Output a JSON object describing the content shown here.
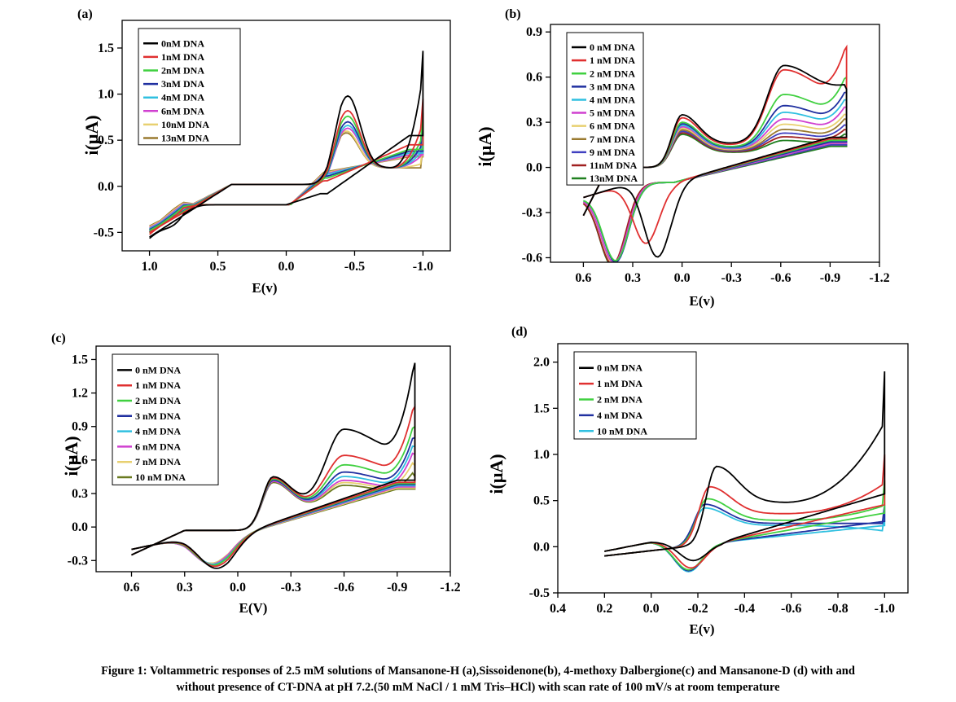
{
  "caption": {
    "line1": "Figure 1: Voltammetric responses of 2.5 mM solutions of Mansanone-H (a),Sissoidenone(b), 4-methoxy Dalbergione(c) and Mansanone-D (d) with and",
    "line2": "without presence of CT-DNA at pH 7.2.(50 mM NaCl / 1 mM Tris–HCl) with scan rate of 100 mV/s at room temperature"
  },
  "chart_data": [
    {
      "type": "line",
      "panel_label": "(a)",
      "xlabel": "E(v)",
      "ylabel": "i(μA)",
      "xlim": [
        1.2,
        -1.2
      ],
      "ylim": [
        -0.7,
        1.8
      ],
      "xticks": [
        1.0,
        0.5,
        0.0,
        -0.5,
        -1.0
      ],
      "xtick_labels": [
        "1.0",
        "0.5",
        "0.0",
        "-0.5",
        "-1.0"
      ],
      "yticks": [
        -0.5,
        0.0,
        0.5,
        1.0,
        1.5
      ],
      "ytick_labels": [
        "-0.5",
        "0.0",
        "0.5",
        "1.0",
        "1.5"
      ],
      "legend_position": "top-left",
      "scan": {
        "start": 1.0,
        "end": -1.0
      },
      "series": [
        {
          "name": "0nM DNA",
          "color": "#000000",
          "pa_pos": -0.45,
          "pa_h": 0.88,
          "pc_pos": -0.25,
          "pc_h": -0.08,
          "end_fwd": 1.47,
          "end_rev": 0.55,
          "start_val": -0.55,
          "start_dip": -0.32
        },
        {
          "name": "1nM DNA",
          "color": "#e03030",
          "pa_pos": -0.45,
          "pa_h": 0.72,
          "pc_pos": -0.27,
          "pc_h": 0.06,
          "end_fwd": 0.95,
          "end_rev": 0.45,
          "start_val": -0.5,
          "start_dip": -0.24
        },
        {
          "name": "2nM DNA",
          "color": "#40d040",
          "pa_pos": -0.45,
          "pa_h": 0.66,
          "pc_pos": -0.28,
          "pc_h": 0.09,
          "end_fwd": 0.8,
          "end_rev": 0.4,
          "start_val": -0.48,
          "start_dip": -0.22
        },
        {
          "name": "3nM DNA",
          "color": "#2030a0",
          "pa_pos": -0.45,
          "pa_h": 0.6,
          "pc_pos": -0.28,
          "pc_h": 0.11,
          "end_fwd": 0.72,
          "end_rev": 0.38,
          "start_val": -0.47,
          "start_dip": -0.21
        },
        {
          "name": "4nM DNA",
          "color": "#30c0e0",
          "pa_pos": -0.45,
          "pa_h": 0.56,
          "pc_pos": -0.28,
          "pc_h": 0.13,
          "end_fwd": 0.65,
          "end_rev": 0.36,
          "start_val": -0.46,
          "start_dip": -0.2
        },
        {
          "name": "6nM DNA",
          "color": "#d040d0",
          "pa_pos": -0.45,
          "pa_h": 0.53,
          "pc_pos": -0.28,
          "pc_h": 0.14,
          "end_fwd": 0.6,
          "end_rev": 0.34,
          "start_val": -0.45,
          "start_dip": -0.19
        },
        {
          "name": "10nM DNA",
          "color": "#e8d070",
          "pa_pos": -0.44,
          "pa_h": 0.5,
          "pc_pos": -0.28,
          "pc_h": 0.15,
          "end_fwd": 0.5,
          "end_rev": 0.33,
          "start_val": -0.44,
          "start_dip": -0.18
        },
        {
          "name": "13nM DNA",
          "color": "#9a7a30",
          "pa_pos": -0.44,
          "pa_h": 0.48,
          "pc_pos": -0.28,
          "pc_h": 0.16,
          "end_fwd": 0.45,
          "end_rev": 0.32,
          "start_val": -0.43,
          "start_dip": -0.17
        }
      ]
    },
    {
      "type": "line",
      "panel_label": "(b)",
      "xlabel": "E(v)",
      "ylabel": "i(μA)",
      "xlim": [
        0.8,
        -1.2
      ],
      "ylim": [
        -0.63,
        0.95
      ],
      "xticks": [
        0.6,
        0.3,
        0.0,
        -0.3,
        -0.6,
        -0.9,
        -1.2
      ],
      "xtick_labels": [
        "0.6",
        "0.3",
        "0.0",
        "-0.3",
        "-0.6",
        "-0.9",
        "-1.2"
      ],
      "yticks": [
        -0.6,
        -0.3,
        0.0,
        0.3,
        0.6,
        0.9
      ],
      "ytick_labels": [
        "-0.6",
        "-0.3",
        "0.0",
        "0.3",
        "0.6",
        "0.9"
      ],
      "legend_position": "top-left",
      "scan": {
        "start": 0.6,
        "end": -1.0
      },
      "series": [
        {
          "name": "0 nM DNA",
          "color": "#000000",
          "a1_pos": 0.0,
          "a1_h": 0.4,
          "a2_pos": -0.62,
          "a2_h": 0.62,
          "c1_pos": 0.15,
          "c1_h": -0.55,
          "end_fwd": 0.52,
          "end_rev": 0.2
        },
        {
          "name": "1 nM DNA",
          "color": "#e03030",
          "a1_pos": 0.0,
          "a1_h": 0.38,
          "a2_pos": -0.62,
          "a2_h": 0.6,
          "c1_pos": 0.22,
          "c1_h": -0.45,
          "end_fwd": 0.8,
          "end_rev": 0.19
        },
        {
          "name": "2 nM DNA",
          "color": "#40d040",
          "a1_pos": 0.0,
          "a1_h": 0.35,
          "a2_pos": -0.62,
          "a2_h": 0.45,
          "c1_pos": 0.4,
          "c1_h": -0.54,
          "end_fwd": 0.6,
          "end_rev": 0.18
        },
        {
          "name": "3 nM DNA",
          "color": "#2030a0",
          "a1_pos": 0.0,
          "a1_h": 0.34,
          "a2_pos": -0.62,
          "a2_h": 0.38,
          "c1_pos": 0.4,
          "c1_h": -0.55,
          "end_fwd": 0.5,
          "end_rev": 0.17
        },
        {
          "name": "4 nM DNA",
          "color": "#30c0e0",
          "a1_pos": 0.0,
          "a1_h": 0.33,
          "a2_pos": -0.62,
          "a2_h": 0.34,
          "c1_pos": 0.4,
          "c1_h": -0.55,
          "end_fwd": 0.45,
          "end_rev": 0.17
        },
        {
          "name": "5 nM DNA",
          "color": "#d040d0",
          "a1_pos": 0.0,
          "a1_h": 0.32,
          "a2_pos": -0.62,
          "a2_h": 0.3,
          "c1_pos": 0.41,
          "c1_h": -0.55,
          "end_fwd": 0.4,
          "end_rev": 0.16
        },
        {
          "name": "6 nM DNA",
          "color": "#e8d070",
          "a1_pos": 0.0,
          "a1_h": 0.31,
          "a2_pos": -0.62,
          "a2_h": 0.27,
          "c1_pos": 0.41,
          "c1_h": -0.56,
          "end_fwd": 0.35,
          "end_rev": 0.16
        },
        {
          "name": "7 nM DNA",
          "color": "#9a7a30",
          "a1_pos": 0.0,
          "a1_h": 0.3,
          "a2_pos": -0.62,
          "a2_h": 0.24,
          "c1_pos": 0.41,
          "c1_h": -0.56,
          "end_fwd": 0.32,
          "end_rev": 0.16
        },
        {
          "name": "9 nM DNA",
          "color": "#4040c0",
          "a1_pos": 0.0,
          "a1_h": 0.29,
          "a2_pos": -0.62,
          "a2_h": 0.22,
          "c1_pos": 0.41,
          "c1_h": -0.56,
          "end_fwd": 0.28,
          "end_rev": 0.15
        },
        {
          "name": "11nM DNA",
          "color": "#a02020",
          "a1_pos": 0.0,
          "a1_h": 0.28,
          "a2_pos": -0.62,
          "a2_h": 0.2,
          "c1_pos": 0.42,
          "c1_h": -0.56,
          "end_fwd": 0.25,
          "end_rev": 0.15
        },
        {
          "name": "13nM DNA",
          "color": "#208020",
          "a1_pos": 0.0,
          "a1_h": 0.27,
          "a2_pos": -0.62,
          "a2_h": 0.18,
          "c1_pos": 0.42,
          "c1_h": -0.57,
          "end_fwd": 0.22,
          "end_rev": 0.14
        }
      ]
    },
    {
      "type": "line",
      "panel_label": "(c)",
      "xlabel": "E(V)",
      "ylabel": "i(μA)",
      "xlim": [
        0.8,
        -1.2
      ],
      "ylim": [
        -0.4,
        1.62
      ],
      "xticks": [
        0.6,
        0.3,
        0.0,
        -0.3,
        -0.6,
        -0.9,
        -1.2
      ],
      "xtick_labels": [
        "0.6",
        "0.3",
        "0.0",
        "-0.3",
        "-0.6",
        "-0.9",
        "-1.2"
      ],
      "yticks": [
        -0.3,
        0.0,
        0.3,
        0.6,
        0.9,
        1.2,
        1.5
      ],
      "ytick_labels": [
        "-0.3",
        "0.0",
        "0.3",
        "0.6",
        "0.9",
        "1.2",
        "1.5"
      ],
      "legend_position": "top-left",
      "scan": {
        "start": 0.6,
        "end": -1.0
      },
      "series": [
        {
          "name": "0 nM DNA",
          "color": "#000000",
          "a1_pos": -0.2,
          "a1_h": 0.53,
          "a2_pos": -0.6,
          "a2_h": 0.79,
          "c1_pos": 0.12,
          "c1_h": -0.3,
          "end_fwd": 1.47,
          "end_rev": 0.42
        },
        {
          "name": "1 nM DNA",
          "color": "#e03030",
          "a1_pos": -0.2,
          "a1_h": 0.52,
          "a2_pos": -0.6,
          "a2_h": 0.56,
          "c1_pos": 0.13,
          "c1_h": -0.28,
          "end_fwd": 1.08,
          "end_rev": 0.4
        },
        {
          "name": "2 nM DNA",
          "color": "#40d040",
          "a1_pos": -0.2,
          "a1_h": 0.51,
          "a2_pos": -0.6,
          "a2_h": 0.48,
          "c1_pos": 0.14,
          "c1_h": -0.27,
          "end_fwd": 0.9,
          "end_rev": 0.39
        },
        {
          "name": "3 nM DNA",
          "color": "#2030a0",
          "a1_pos": -0.2,
          "a1_h": 0.5,
          "a2_pos": -0.6,
          "a2_h": 0.42,
          "c1_pos": 0.14,
          "c1_h": -0.27,
          "end_fwd": 0.8,
          "end_rev": 0.38
        },
        {
          "name": "4 nM DNA",
          "color": "#30c0e0",
          "a1_pos": -0.2,
          "a1_h": 0.5,
          "a2_pos": -0.6,
          "a2_h": 0.38,
          "c1_pos": 0.14,
          "c1_h": -0.26,
          "end_fwd": 0.72,
          "end_rev": 0.37
        },
        {
          "name": "6 nM DNA",
          "color": "#d040d0",
          "a1_pos": -0.2,
          "a1_h": 0.49,
          "a2_pos": -0.6,
          "a2_h": 0.35,
          "c1_pos": 0.15,
          "c1_h": -0.26,
          "end_fwd": 0.65,
          "end_rev": 0.36
        },
        {
          "name": "7 nM DNA",
          "color": "#e8d070",
          "a1_pos": -0.2,
          "a1_h": 0.49,
          "a2_pos": -0.6,
          "a2_h": 0.33,
          "c1_pos": 0.15,
          "c1_h": -0.25,
          "end_fwd": 0.55,
          "end_rev": 0.35
        },
        {
          "name": "10 nM DNA",
          "color": "#6a7a20",
          "a1_pos": -0.2,
          "a1_h": 0.48,
          "a2_pos": -0.6,
          "a2_h": 0.31,
          "c1_pos": 0.15,
          "c1_h": -0.25,
          "end_fwd": 0.45,
          "end_rev": 0.34
        }
      ]
    },
    {
      "type": "line",
      "panel_label": "(d)",
      "xlabel": "E(v)",
      "ylabel": "i(μA)",
      "xlim": [
        0.4,
        -1.1
      ],
      "ylim": [
        -0.5,
        2.2
      ],
      "xticks": [
        0.4,
        0.2,
        0.0,
        -0.2,
        -0.4,
        -0.6,
        -0.8,
        -1.0
      ],
      "xtick_labels": [
        "0.4",
        "0.2",
        "0.0",
        "-0.2",
        "-0.4",
        "-0.6",
        "-0.8",
        "-1.0"
      ],
      "yticks": [
        -0.5,
        0.0,
        0.5,
        1.0,
        1.5,
        2.0
      ],
      "ytick_labels": [
        "-0.5",
        "0.0",
        "0.5",
        "1.0",
        "1.5",
        "2.0"
      ],
      "legend_position": "top-left",
      "scan": {
        "start": 0.2,
        "end": -1.0
      },
      "series": [
        {
          "name": "0 nM DNA",
          "color": "#000000",
          "pa_pos": -0.28,
          "pa_h": 0.87,
          "pc_pos": -0.18,
          "pc_h": -0.2,
          "end_fwd": 1.9,
          "end_rev": 0.58
        },
        {
          "name": "1 nM DNA",
          "color": "#e03030",
          "pa_pos": -0.25,
          "pa_h": 0.65,
          "pc_pos": -0.17,
          "pc_h": -0.28,
          "end_fwd": 1.0,
          "end_rev": 0.45
        },
        {
          "name": "2 nM DNA",
          "color": "#40d040",
          "pa_pos": -0.24,
          "pa_h": 0.52,
          "pc_pos": -0.16,
          "pc_h": -0.3,
          "end_fwd": 0.72,
          "end_rev": 0.35
        },
        {
          "name": "4 nM DNA",
          "color": "#2030a0",
          "pa_pos": -0.23,
          "pa_h": 0.46,
          "pc_pos": -0.16,
          "pc_h": -0.31,
          "end_fwd": 0.45,
          "end_rev": 0.25
        },
        {
          "name": "10 nM DNA",
          "color": "#30c0e0",
          "pa_pos": -0.23,
          "pa_h": 0.42,
          "pc_pos": -0.16,
          "pc_h": -0.32,
          "end_fwd": 0.35,
          "end_rev": 0.2
        }
      ]
    }
  ]
}
